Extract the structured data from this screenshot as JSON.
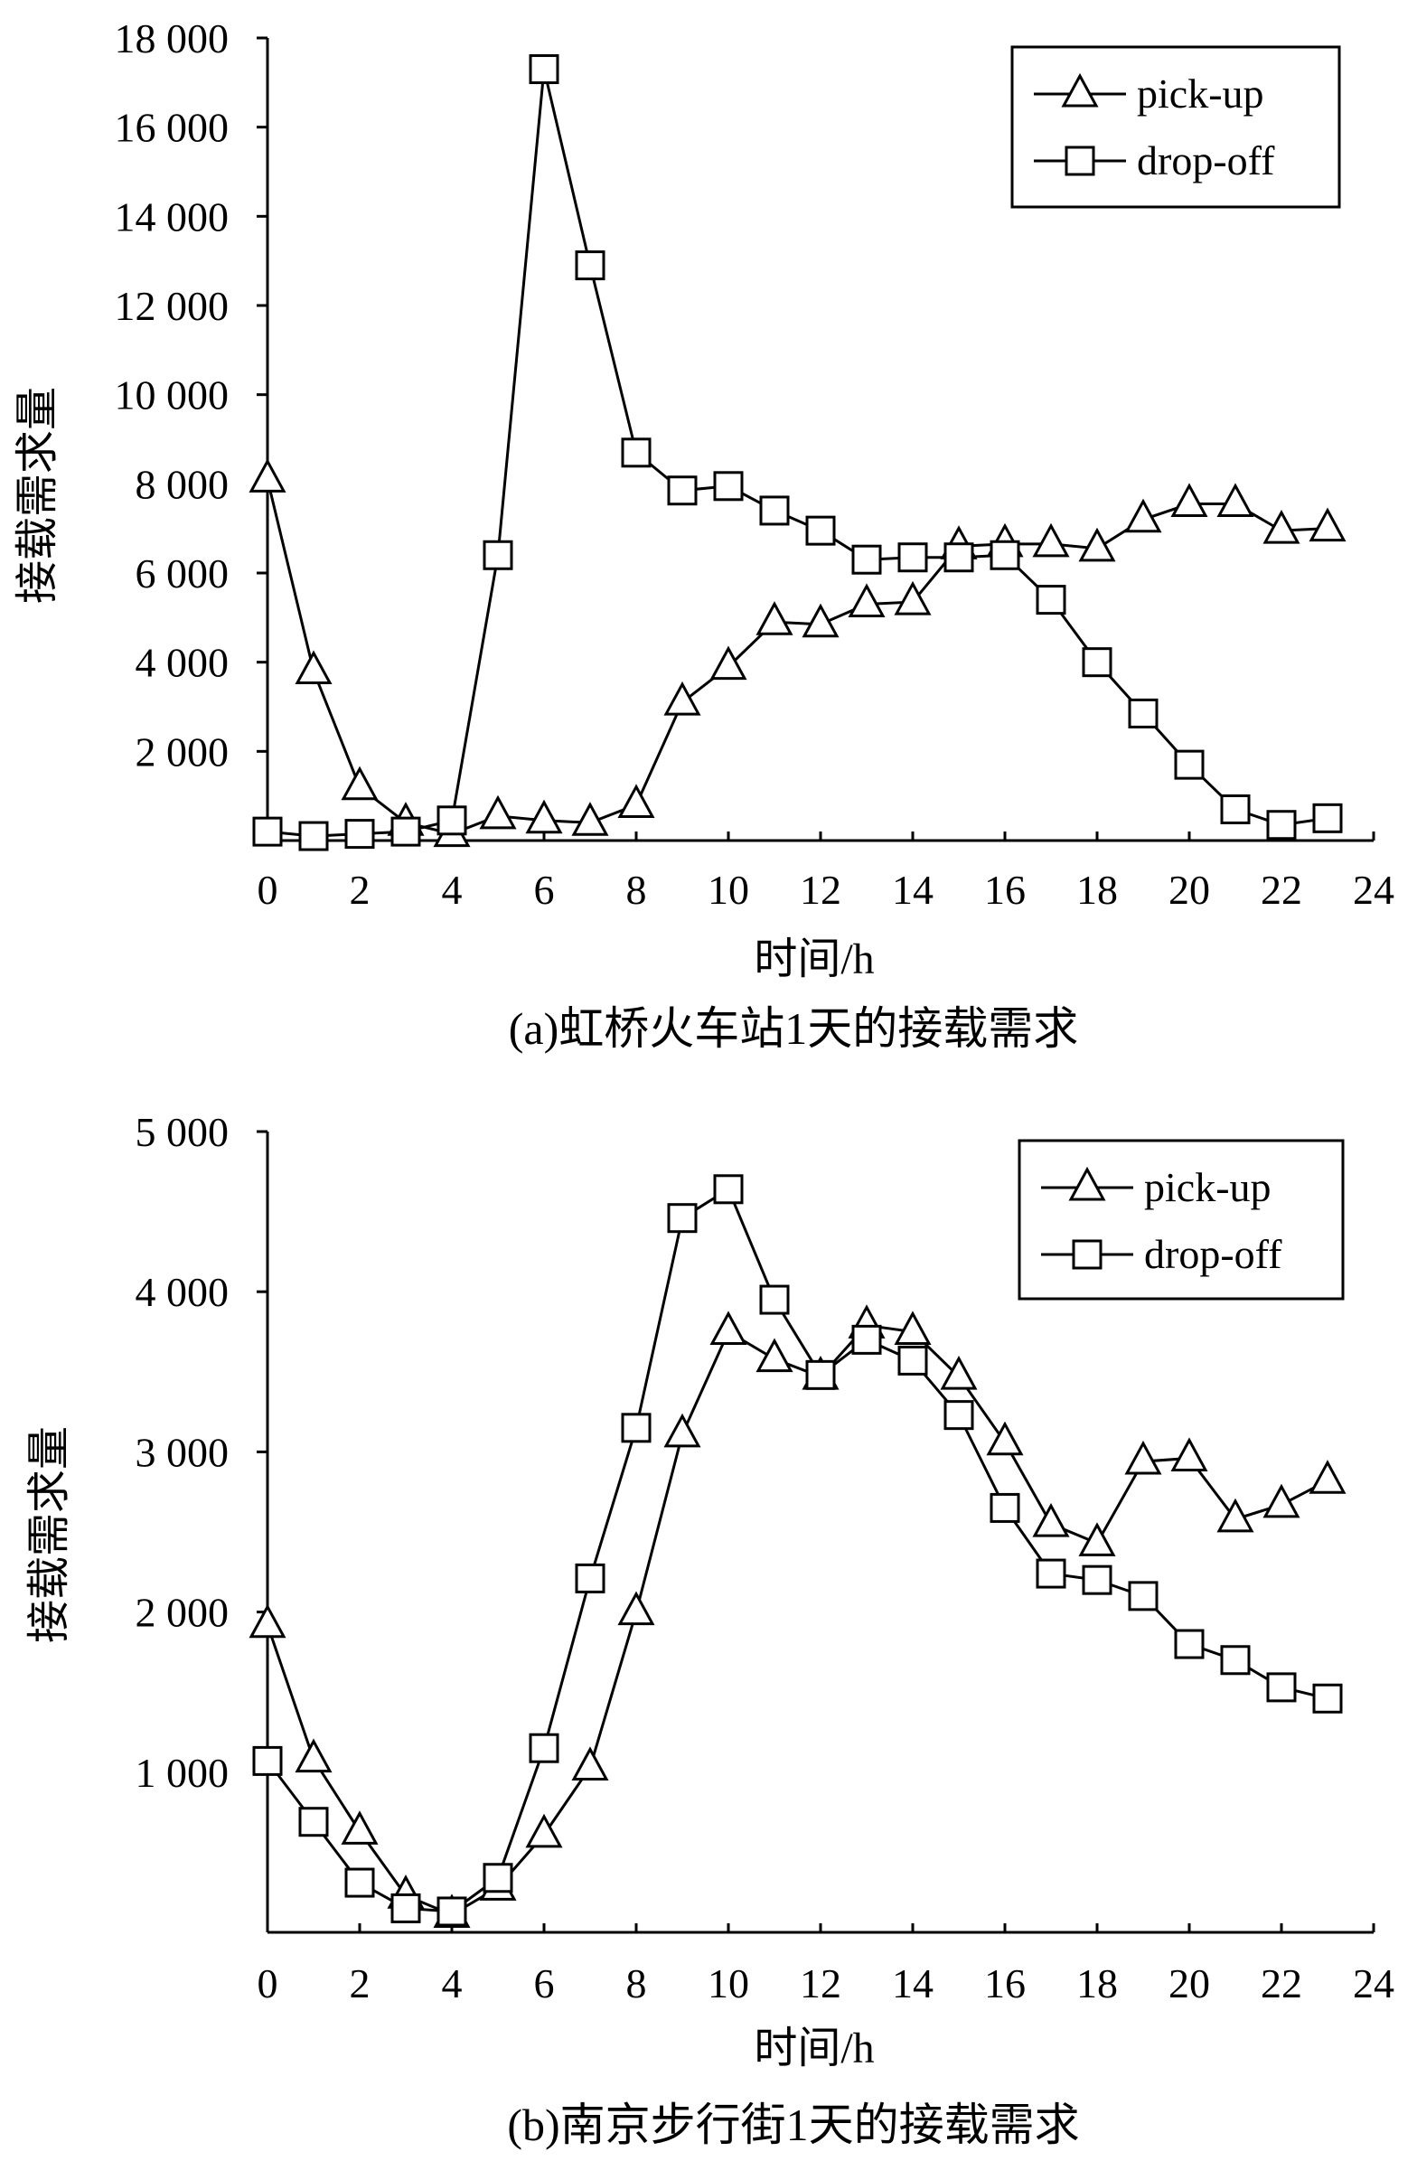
{
  "chart_data": [
    {
      "type": "line",
      "caption": "(a)虹桥火车站1天的接载需求",
      "xlabel": "时间/h",
      "ylabel": "接载需求量",
      "xlim": [
        0,
        24
      ],
      "ylim": [
        0,
        18000
      ],
      "x_ticks": [
        "0",
        "2",
        "4",
        "6",
        "8",
        "10",
        "12",
        "14",
        "16",
        "18",
        "20",
        "22",
        "24"
      ],
      "y_ticks": [
        "2 000",
        "4 000",
        "6 000",
        "8 000",
        "10 000",
        "12 000",
        "14 000",
        "16 000",
        "18 000"
      ],
      "legend_position": "top-right",
      "x": [
        0,
        1,
        2,
        3,
        4,
        5,
        6,
        7,
        8,
        9,
        10,
        11,
        12,
        13,
        14,
        15,
        16,
        17,
        18,
        19,
        20,
        21,
        22,
        23
      ],
      "series": [
        {
          "name": "pick-up",
          "marker": "triangle",
          "values": [
            8100,
            3800,
            1200,
            400,
            150,
            550,
            450,
            400,
            800,
            3100,
            3900,
            4900,
            4850,
            5300,
            5350,
            6600,
            6650,
            6650,
            6550,
            7200,
            7550,
            7550,
            6950,
            7000
          ]
        },
        {
          "name": "drop-off",
          "marker": "square",
          "values": [
            200,
            100,
            150,
            200,
            450,
            6400,
            17300,
            12900,
            8700,
            7850,
            7950,
            7400,
            6950,
            6300,
            6350,
            6350,
            6400,
            5400,
            4000,
            2850,
            1700,
            700,
            350,
            500
          ]
        }
      ]
    },
    {
      "type": "line",
      "caption": "(b)南京步行街1天的接载需求",
      "xlabel": "时间/h",
      "ylabel": "接载需求量",
      "xlim": [
        0,
        24
      ],
      "ylim": [
        0,
        5000
      ],
      "x_ticks": [
        "0",
        "2",
        "4",
        "6",
        "8",
        "10",
        "12",
        "14",
        "16",
        "18",
        "20",
        "22",
        "24"
      ],
      "y_ticks": [
        "1 000",
        "2 000",
        "3 000",
        "4 000",
        "5 000"
      ],
      "legend_position": "top-right",
      "x": [
        0,
        1,
        2,
        3,
        4,
        5,
        6,
        7,
        8,
        9,
        10,
        11,
        12,
        13,
        14,
        15,
        16,
        17,
        18,
        19,
        20,
        21,
        22,
        23
      ],
      "series": [
        {
          "name": "pick-up",
          "marker": "triangle",
          "values": [
            1920,
            1080,
            630,
            230,
            110,
            280,
            610,
            1030,
            2000,
            3110,
            3750,
            3580,
            3470,
            3790,
            3750,
            3470,
            3060,
            2550,
            2430,
            2940,
            2960,
            2580,
            2670,
            2820
          ]
        },
        {
          "name": "drop-off",
          "marker": "square",
          "values": [
            1070,
            690,
            310,
            150,
            130,
            340,
            1150,
            2210,
            3150,
            4460,
            4640,
            3950,
            3480,
            3700,
            3570,
            3230,
            2650,
            2240,
            2200,
            2100,
            1800,
            1700,
            1530,
            1460
          ]
        }
      ]
    }
  ]
}
